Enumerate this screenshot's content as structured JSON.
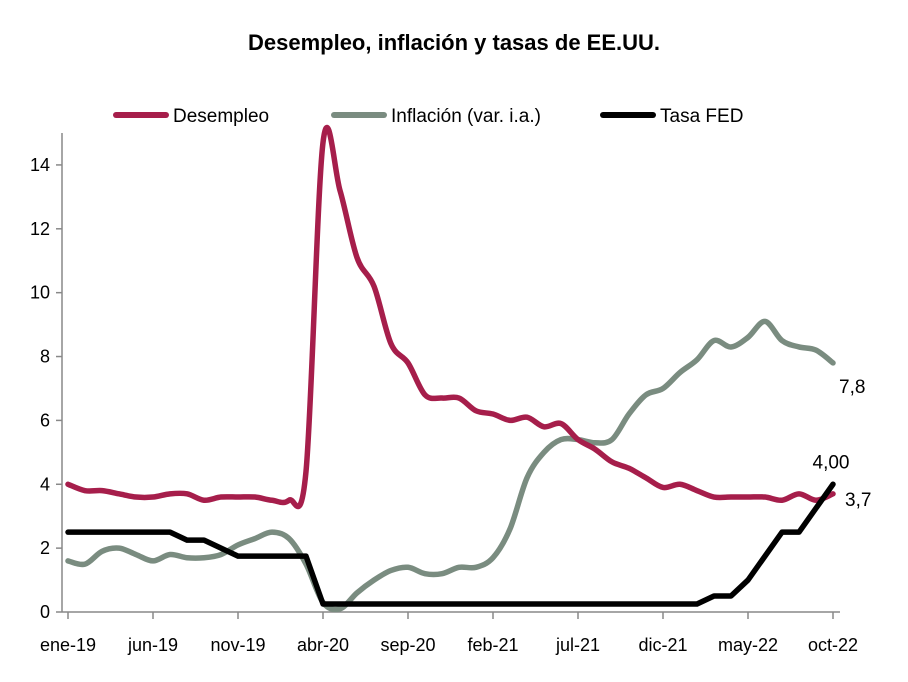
{
  "chart_data": {
    "type": "line",
    "title": "Desempleo, inflación y tasas de EE.UU.",
    "xlabel": "",
    "ylabel": "",
    "ylim": [
      0,
      15
    ],
    "yticks": [
      0,
      2,
      4,
      6,
      8,
      10,
      12,
      14
    ],
    "x_tick_labels": [
      "ene-19",
      "jun-19",
      "nov-19",
      "abr-20",
      "sep-20",
      "feb-21",
      "jul-21",
      "dic-21",
      "may-22",
      "oct-22"
    ],
    "grid": false,
    "legend_position": "top",
    "x_start": "2019-01",
    "x_end": "2022-10",
    "series": [
      {
        "name": "Desempleo",
        "color": "#A61E4B",
        "values": [
          4.0,
          3.8,
          3.8,
          3.7,
          3.6,
          3.6,
          3.7,
          3.7,
          3.5,
          3.6,
          3.6,
          3.6,
          3.5,
          3.5,
          4.4,
          14.7,
          13.2,
          11.1,
          10.2,
          8.4,
          7.8,
          6.8,
          6.7,
          6.7,
          6.3,
          6.2,
          6.0,
          6.1,
          5.8,
          5.9,
          5.4,
          5.1,
          4.7,
          4.5,
          4.2,
          3.9,
          4.0,
          3.8,
          3.6,
          3.6,
          3.6,
          3.6,
          3.5,
          3.7,
          3.5,
          3.7
        ],
        "end_label": "3,7"
      },
      {
        "name": "Inflación (var. i.a.)",
        "color": "#7A8C80",
        "values": [
          1.6,
          1.5,
          1.9,
          2.0,
          1.8,
          1.6,
          1.8,
          1.7,
          1.7,
          1.8,
          2.1,
          2.3,
          2.5,
          2.3,
          1.5,
          0.3,
          0.1,
          0.6,
          1.0,
          1.3,
          1.4,
          1.2,
          1.2,
          1.4,
          1.4,
          1.7,
          2.6,
          4.2,
          5.0,
          5.4,
          5.4,
          5.3,
          5.4,
          6.2,
          6.8,
          7.0,
          7.5,
          7.9,
          8.5,
          8.3,
          8.6,
          9.1,
          8.5,
          8.3,
          8.2,
          7.8
        ],
        "end_label": "7,8"
      },
      {
        "name": "Tasa FED",
        "color": "#000000",
        "values": [
          2.5,
          2.5,
          2.5,
          2.5,
          2.5,
          2.5,
          2.5,
          2.25,
          2.25,
          2.0,
          1.75,
          1.75,
          1.75,
          1.75,
          1.75,
          0.25,
          0.25,
          0.25,
          0.25,
          0.25,
          0.25,
          0.25,
          0.25,
          0.25,
          0.25,
          0.25,
          0.25,
          0.25,
          0.25,
          0.25,
          0.25,
          0.25,
          0.25,
          0.25,
          0.25,
          0.25,
          0.25,
          0.25,
          0.5,
          0.5,
          1.0,
          1.75,
          2.5,
          2.5,
          3.25,
          4.0
        ],
        "end_label": "4,00"
      }
    ]
  }
}
